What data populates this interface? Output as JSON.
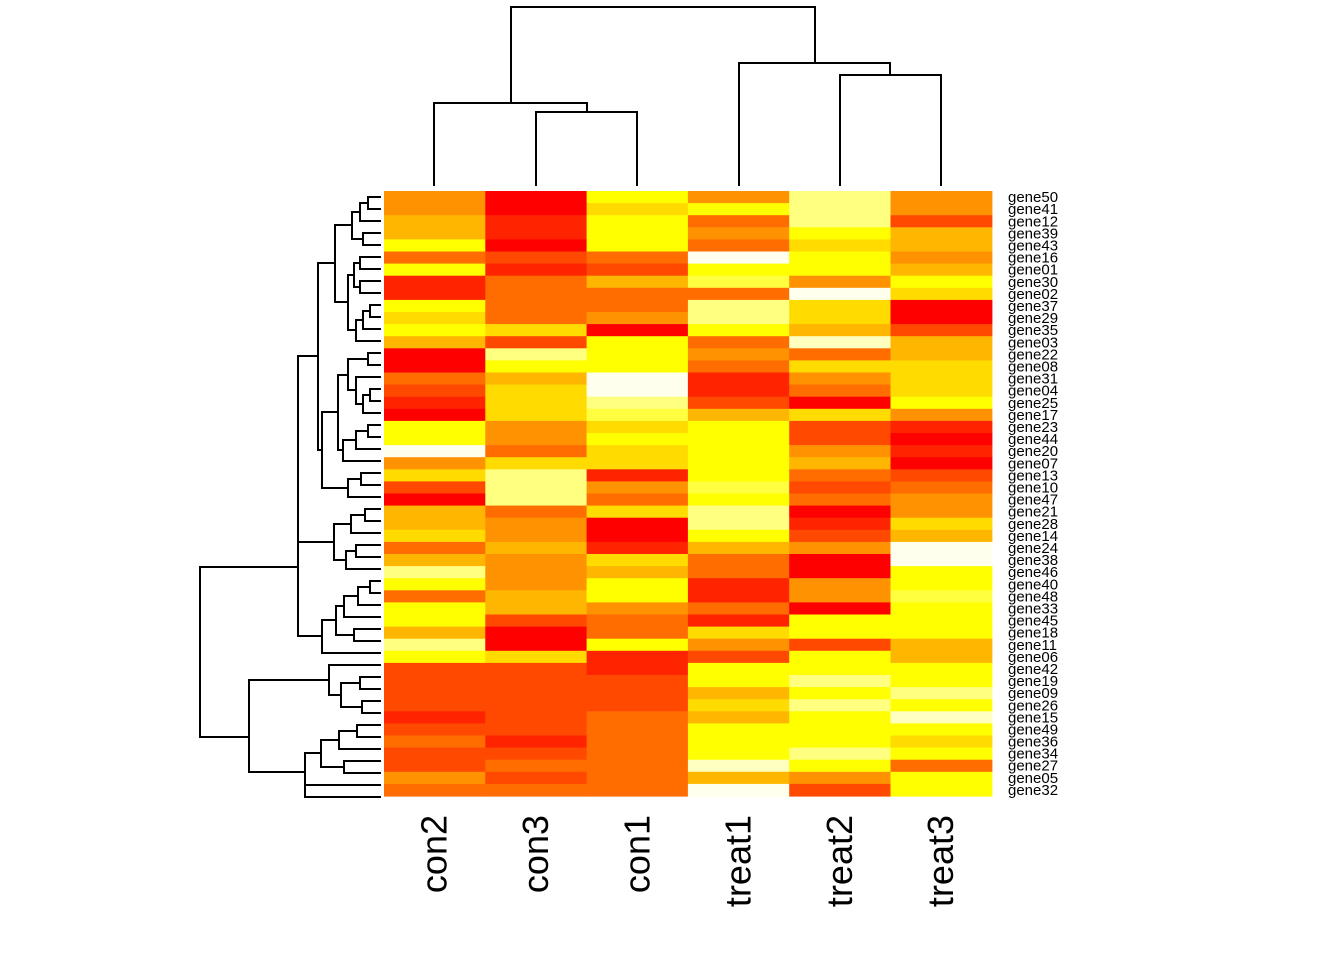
{
  "chart_data": {
    "type": "heatmap",
    "title": "",
    "xlabel": "",
    "ylabel": "",
    "columns": [
      "con2",
      "con3",
      "con1",
      "treat1",
      "treat2",
      "treat3"
    ],
    "rows": [
      "gene50",
      "gene41",
      "gene12",
      "gene39",
      "gene43",
      "gene16",
      "gene01",
      "gene30",
      "gene02",
      "gene37",
      "gene29",
      "gene35",
      "gene03",
      "gene22",
      "gene08",
      "gene31",
      "gene04",
      "gene25",
      "gene17",
      "gene23",
      "gene44",
      "gene20",
      "gene07",
      "gene13",
      "gene10",
      "gene47",
      "gene21",
      "gene28",
      "gene14",
      "gene24",
      "gene38",
      "gene46",
      "gene40",
      "gene48",
      "gene33",
      "gene45",
      "gene18",
      "gene11",
      "gene06",
      "gene42",
      "gene19",
      "gene09",
      "gene26",
      "gene15",
      "gene49",
      "gene36",
      "gene34",
      "gene27",
      "gene05",
      "gene32"
    ],
    "color_scale": "heat.colors (red = low, white = high)",
    "palette": [
      "#FF0000",
      "#FF2400",
      "#FF4900",
      "#FF6D00",
      "#FF9200",
      "#FFB600",
      "#FFDB00",
      "#FFFF00",
      "#FFFF40",
      "#FFFF80",
      "#FFFFBF",
      "#FFFFEE"
    ],
    "levels": [
      [
        4,
        0,
        7,
        4,
        9,
        4
      ],
      [
        4,
        0,
        6,
        7,
        9,
        4
      ],
      [
        5,
        1,
        7,
        3,
        9,
        2
      ],
      [
        5,
        1,
        7,
        4,
        7,
        5
      ],
      [
        7,
        0,
        7,
        3,
        6,
        5
      ],
      [
        3,
        2,
        3,
        11,
        7,
        4
      ],
      [
        7,
        1,
        2,
        7,
        7,
        5
      ],
      [
        1,
        3,
        5,
        8,
        4,
        7
      ],
      [
        1,
        3,
        3,
        3,
        11,
        6
      ],
      [
        7,
        3,
        3,
        9,
        6,
        0
      ],
      [
        6,
        3,
        4,
        9,
        6,
        0
      ],
      [
        7,
        6,
        0,
        7,
        5,
        2
      ],
      [
        5,
        2,
        7,
        3,
        10,
        5
      ],
      [
        0,
        9,
        7,
        4,
        3,
        5
      ],
      [
        0,
        7,
        7,
        3,
        6,
        6
      ],
      [
        3,
        5,
        11,
        1,
        4,
        6
      ],
      [
        2,
        6,
        11,
        1,
        3,
        6
      ],
      [
        1,
        6,
        9,
        2,
        0,
        7
      ],
      [
        0,
        6,
        8,
        5,
        6,
        4
      ],
      [
        7,
        4,
        6,
        7,
        2,
        1
      ],
      [
        7,
        4,
        7,
        7,
        2,
        0
      ],
      [
        11,
        3,
        6,
        7,
        4,
        1
      ],
      [
        4,
        6,
        6,
        7,
        5,
        0
      ],
      [
        6,
        9,
        1,
        7,
        3,
        2
      ],
      [
        2,
        9,
        4,
        8,
        2,
        3
      ],
      [
        0,
        9,
        3,
        7,
        3,
        4
      ],
      [
        5,
        3,
        6,
        9,
        0,
        4
      ],
      [
        5,
        4,
        0,
        9,
        1,
        6
      ],
      [
        6,
        4,
        0,
        7,
        2,
        5
      ],
      [
        3,
        5,
        1,
        5,
        4,
        11
      ],
      [
        5,
        4,
        6,
        3,
        0,
        11
      ],
      [
        9,
        4,
        5,
        3,
        0,
        7
      ],
      [
        7,
        4,
        7,
        1,
        4,
        7
      ],
      [
        3,
        5,
        7,
        1,
        4,
        8
      ],
      [
        7,
        5,
        4,
        3,
        0,
        7
      ],
      [
        7,
        2,
        3,
        1,
        7,
        7
      ],
      [
        5,
        0,
        3,
        6,
        7,
        7
      ],
      [
        9,
        0,
        7,
        4,
        2,
        5
      ],
      [
        7,
        6,
        1,
        2,
        7,
        5
      ],
      [
        2,
        2,
        1,
        7,
        7,
        7
      ],
      [
        2,
        2,
        2,
        7,
        9,
        7
      ],
      [
        2,
        2,
        2,
        5,
        7,
        9
      ],
      [
        2,
        2,
        2,
        6,
        9,
        7
      ],
      [
        1,
        2,
        3,
        5,
        7,
        10
      ],
      [
        2,
        2,
        3,
        7,
        7,
        7
      ],
      [
        3,
        1,
        3,
        7,
        7,
        6
      ],
      [
        2,
        2,
        3,
        7,
        9,
        7
      ],
      [
        2,
        3,
        3,
        10,
        7,
        3
      ],
      [
        4,
        2,
        3,
        5,
        4,
        7
      ],
      [
        3,
        3,
        3,
        11,
        2,
        7
      ]
    ],
    "legend": "none",
    "grid": false
  }
}
